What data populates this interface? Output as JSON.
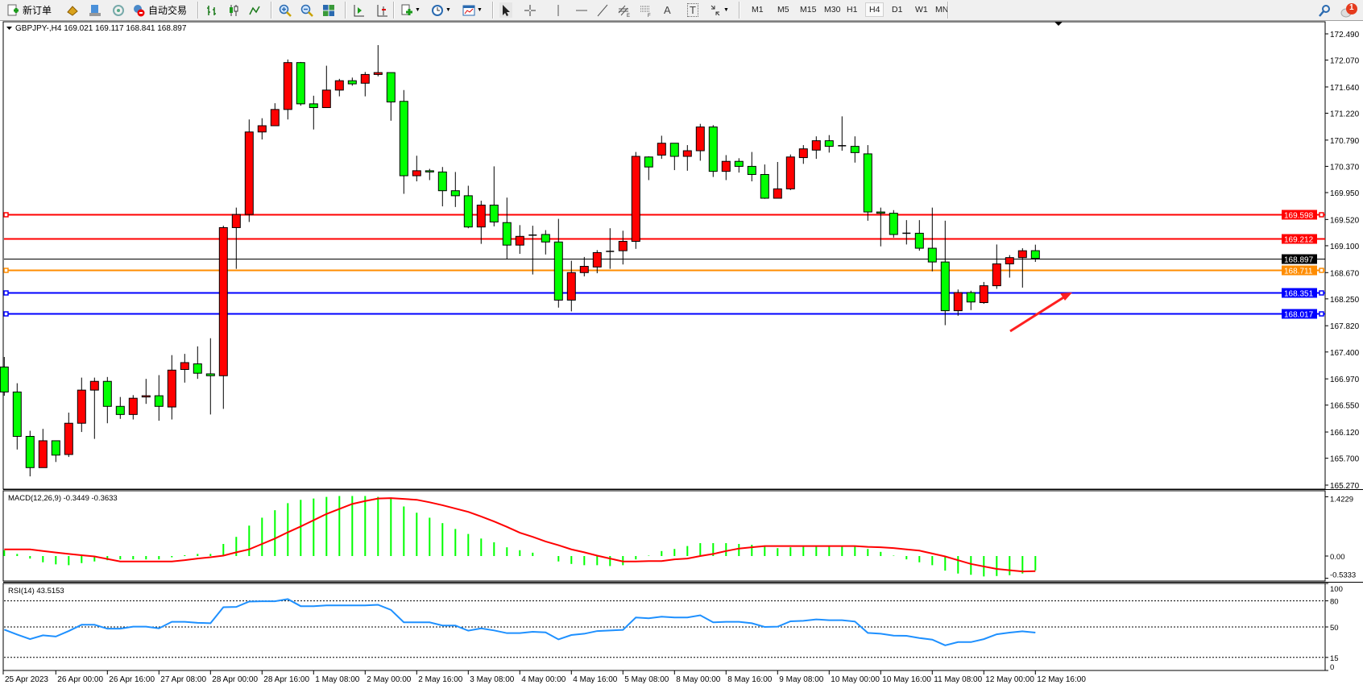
{
  "toolbar": {
    "new_order_label": "新订单",
    "auto_trading_label": "自动交易",
    "timeframes": [
      "M1",
      "M5",
      "M15",
      "M30",
      "H1",
      "H4",
      "D1",
      "W1",
      "MN"
    ],
    "active_timeframe": "H4",
    "notification_count": "1",
    "tool_text_label": "A",
    "tool_label_label": "T"
  },
  "chart": {
    "header": "GBPJPY-,H4  169.021 169.117 168.841 168.897",
    "colors": {
      "bull": "#ff0000",
      "bear": "#00ff00",
      "macd_hist": "#00ff00",
      "macd_signal": "#ff0000",
      "rsi": "#1e90ff"
    }
  },
  "chart_data": {
    "type": "candlestick",
    "symbol": "GBPJPY-",
    "timeframe": "H4",
    "price_axis_ticks": [
      "172.490",
      "172.070",
      "171.640",
      "171.220",
      "170.790",
      "170.370",
      "169.950",
      "169.520",
      "169.100",
      "168.670",
      "168.250",
      "167.820",
      "167.400",
      "166.970",
      "166.550",
      "166.120",
      "165.700",
      "165.270"
    ],
    "price_range": [
      165.27,
      172.49
    ],
    "time_labels": [
      {
        "bar": 0,
        "label": "25 Apr 2023"
      },
      {
        "bar": 4,
        "label": "26 Apr 00:00"
      },
      {
        "bar": 8,
        "label": "26 Apr 16:00"
      },
      {
        "bar": 12,
        "label": "27 Apr 08:00"
      },
      {
        "bar": 16,
        "label": "28 Apr 00:00"
      },
      {
        "bar": 20,
        "label": "28 Apr 16:00"
      },
      {
        "bar": 24,
        "label": "1 May 08:00"
      },
      {
        "bar": 28,
        "label": "2 May 00:00"
      },
      {
        "bar": 32,
        "label": "2 May 16:00"
      },
      {
        "bar": 36,
        "label": "3 May 08:00"
      },
      {
        "bar": 40,
        "label": "4 May 00:00"
      },
      {
        "bar": 44,
        "label": "4 May 16:00"
      },
      {
        "bar": 48,
        "label": "5 May 08:00"
      },
      {
        "bar": 52,
        "label": "8 May 00:00"
      },
      {
        "bar": 56,
        "label": "8 May 16:00"
      },
      {
        "bar": 60,
        "label": "9 May 08:00"
      },
      {
        "bar": 64,
        "label": "10 May 00:00"
      },
      {
        "bar": 68,
        "label": "10 May 16:00"
      },
      {
        "bar": 72,
        "label": "11 May 08:00"
      },
      {
        "bar": 76,
        "label": "12 May 00:00"
      },
      {
        "bar": 80,
        "label": "12 May 16:00"
      }
    ],
    "ohlc": [
      [
        167.16,
        167.32,
        166.7,
        166.76
      ],
      [
        166.76,
        166.9,
        165.84,
        166.05
      ],
      [
        166.05,
        166.14,
        165.41,
        165.55
      ],
      [
        165.55,
        166.17,
        165.55,
        165.98
      ],
      [
        165.98,
        165.98,
        165.64,
        165.75
      ],
      [
        165.76,
        166.43,
        165.72,
        166.26
      ],
      [
        166.26,
        166.99,
        166.12,
        166.79
      ],
      [
        166.79,
        166.99,
        166.01,
        166.93
      ],
      [
        166.93,
        167.0,
        166.26,
        166.53
      ],
      [
        166.53,
        166.68,
        166.33,
        166.4
      ],
      [
        166.4,
        166.71,
        166.32,
        166.66
      ],
      [
        166.68,
        166.97,
        166.57,
        166.7
      ],
      [
        166.7,
        167.03,
        166.3,
        166.53
      ],
      [
        166.52,
        167.35,
        166.32,
        167.11
      ],
      [
        167.12,
        167.37,
        166.91,
        167.23
      ],
      [
        167.21,
        167.49,
        166.97,
        167.06
      ],
      [
        167.05,
        167.62,
        166.4,
        167.02
      ],
      [
        167.02,
        169.42,
        166.49,
        169.39
      ],
      [
        169.39,
        169.71,
        168.73,
        169.6
      ],
      [
        169.6,
        171.12,
        169.48,
        170.92
      ],
      [
        170.92,
        171.14,
        170.8,
        171.02
      ],
      [
        171.02,
        171.38,
        171.02,
        171.28
      ],
      [
        171.28,
        172.08,
        171.12,
        172.03
      ],
      [
        172.03,
        172.04,
        171.34,
        171.37
      ],
      [
        171.37,
        171.5,
        170.96,
        171.31
      ],
      [
        171.31,
        171.98,
        171.31,
        171.59
      ],
      [
        171.59,
        171.77,
        171.49,
        171.74
      ],
      [
        171.74,
        171.79,
        171.66,
        171.69
      ],
      [
        171.7,
        171.88,
        171.49,
        171.84
      ],
      [
        171.84,
        172.31,
        171.81,
        171.87
      ],
      [
        171.87,
        171.87,
        171.1,
        171.4
      ],
      [
        171.41,
        171.59,
        169.93,
        170.22
      ],
      [
        170.22,
        170.54,
        170.13,
        170.3
      ],
      [
        170.3,
        170.33,
        170.15,
        170.28
      ],
      [
        170.28,
        170.36,
        169.73,
        169.98
      ],
      [
        169.98,
        170.28,
        169.72,
        169.9
      ],
      [
        169.9,
        170.06,
        169.38,
        169.4
      ],
      [
        169.4,
        169.82,
        169.13,
        169.75
      ],
      [
        169.75,
        170.37,
        169.41,
        169.48
      ],
      [
        169.47,
        169.87,
        168.89,
        169.11
      ],
      [
        169.11,
        169.43,
        168.97,
        169.25
      ],
      [
        169.27,
        169.42,
        168.64,
        169.27
      ],
      [
        169.28,
        169.35,
        168.96,
        169.16
      ],
      [
        169.16,
        169.53,
        168.11,
        168.23
      ],
      [
        168.23,
        168.86,
        168.05,
        168.67
      ],
      [
        168.67,
        168.92,
        168.61,
        168.77
      ],
      [
        168.76,
        169.03,
        168.66,
        168.99
      ],
      [
        169.0,
        169.38,
        168.73,
        169.01
      ],
      [
        169.02,
        169.34,
        168.8,
        169.17
      ],
      [
        169.17,
        170.6,
        169.05,
        170.53
      ],
      [
        170.52,
        170.53,
        170.15,
        170.36
      ],
      [
        170.55,
        170.86,
        170.49,
        170.74
      ],
      [
        170.74,
        170.74,
        170.31,
        170.53
      ],
      [
        170.53,
        170.71,
        170.3,
        170.62
      ],
      [
        170.62,
        171.05,
        170.46,
        171.0
      ],
      [
        171.0,
        171.03,
        170.2,
        170.29
      ],
      [
        170.29,
        170.55,
        170.15,
        170.45
      ],
      [
        170.45,
        170.5,
        170.27,
        170.37
      ],
      [
        170.37,
        170.6,
        170.13,
        170.24
      ],
      [
        170.24,
        170.4,
        169.85,
        169.86
      ],
      [
        169.86,
        170.44,
        169.86,
        170.01
      ],
      [
        170.01,
        170.56,
        169.99,
        170.52
      ],
      [
        170.51,
        170.71,
        170.41,
        170.65
      ],
      [
        170.63,
        170.85,
        170.49,
        170.78
      ],
      [
        170.78,
        170.87,
        170.59,
        170.69
      ],
      [
        170.7,
        171.17,
        170.62,
        170.69
      ],
      [
        170.69,
        170.85,
        170.43,
        170.59
      ],
      [
        170.57,
        170.71,
        169.5,
        169.64
      ],
      [
        169.64,
        169.71,
        169.09,
        169.62
      ],
      [
        169.62,
        169.67,
        169.23,
        169.28
      ],
      [
        169.3,
        169.51,
        169.12,
        169.29
      ],
      [
        169.3,
        169.51,
        169.02,
        169.06
      ],
      [
        169.06,
        169.71,
        168.69,
        168.84
      ],
      [
        168.84,
        169.5,
        167.83,
        168.06
      ],
      [
        168.06,
        168.4,
        167.98,
        168.35
      ],
      [
        168.35,
        168.38,
        168.07,
        168.2
      ],
      [
        168.19,
        168.52,
        168.17,
        168.46
      ],
      [
        168.46,
        169.12,
        168.41,
        168.81
      ],
      [
        168.81,
        168.95,
        168.59,
        168.91
      ],
      [
        168.91,
        169.06,
        168.43,
        169.02
      ],
      [
        169.021,
        169.117,
        168.841,
        168.897
      ]
    ],
    "horizontal_lines": [
      {
        "price": 169.598,
        "label": "169.598",
        "color": "#ff0000",
        "markers": true
      },
      {
        "price": 169.212,
        "label": "169.212",
        "color": "#ff0000",
        "markers": false
      },
      {
        "price": 168.897,
        "label": "168.897",
        "color": "#000000",
        "markers": false
      },
      {
        "price": 168.711,
        "label": "168.711",
        "color": "#ff8c00",
        "markers": true
      },
      {
        "price": 168.351,
        "label": "168.351",
        "color": "#0000ff",
        "markers": true
      },
      {
        "price": 168.017,
        "label": "168.017",
        "color": "#0000ff",
        "markers": true
      }
    ],
    "annotation": {
      "type": "arrow",
      "color": "#ff2020",
      "direction": "up-right"
    },
    "macd": {
      "label": "MACD(12,26,9) -0.3449 -0.3633",
      "axis_labels": [
        "1.4229",
        "0.00",
        "-0.5333"
      ],
      "range": [
        -0.5333,
        1.4229
      ],
      "histogram": [
        0.14,
        0.05,
        -0.06,
        -0.15,
        -0.2,
        -0.22,
        -0.17,
        -0.13,
        -0.1,
        -0.08,
        -0.08,
        -0.08,
        -0.08,
        -0.03,
        0.02,
        0.05,
        0.05,
        0.29,
        0.46,
        0.73,
        0.92,
        1.1,
        1.27,
        1.35,
        1.38,
        1.42,
        1.44,
        1.44,
        1.44,
        1.42,
        1.38,
        1.19,
        1.04,
        0.92,
        0.79,
        0.65,
        0.53,
        0.42,
        0.33,
        0.21,
        0.14,
        0.08,
        0.0,
        -0.13,
        -0.19,
        -0.22,
        -0.22,
        -0.24,
        -0.22,
        -0.08,
        0.01,
        0.12,
        0.17,
        0.24,
        0.31,
        0.31,
        0.31,
        0.29,
        0.27,
        0.23,
        0.19,
        0.21,
        0.24,
        0.24,
        0.24,
        0.24,
        0.24,
        0.17,
        0.1,
        0.01,
        -0.08,
        -0.15,
        -0.22,
        -0.35,
        -0.42,
        -0.45,
        -0.49,
        -0.48,
        -0.46,
        -0.42,
        -0.3449
      ],
      "signal": [
        0.16,
        0.16,
        0.16,
        0.12,
        0.085,
        0.05,
        0.02,
        -0.01,
        -0.07,
        -0.13,
        -0.13,
        -0.13,
        -0.13,
        -0.13,
        -0.1,
        -0.06,
        -0.03,
        0.01,
        0.09,
        0.16,
        0.29,
        0.42,
        0.57,
        0.71,
        0.86,
        1.01,
        1.13,
        1.25,
        1.32,
        1.38,
        1.39,
        1.37,
        1.35,
        1.29,
        1.22,
        1.14,
        1.06,
        0.95,
        0.83,
        0.7,
        0.56,
        0.46,
        0.35,
        0.26,
        0.16,
        0.09,
        0.01,
        -0.06,
        -0.13,
        -0.13,
        -0.12,
        -0.12,
        -0.08,
        -0.06,
        0.0,
        0.05,
        0.12,
        0.18,
        0.21,
        0.24,
        0.24,
        0.24,
        0.24,
        0.24,
        0.24,
        0.24,
        0.24,
        0.22,
        0.21,
        0.19,
        0.16,
        0.13,
        0.06,
        -0.01,
        -0.1,
        -0.19,
        -0.25,
        -0.31,
        -0.34,
        -0.37,
        -0.3633
      ]
    },
    "rsi": {
      "label": "RSI(14) 43.5153",
      "axis_labels": [
        "100",
        "80",
        "50",
        "15",
        "0"
      ],
      "levels": [
        80,
        50,
        15
      ],
      "range": [
        0,
        100
      ],
      "values": [
        46.9,
        41.3,
        36,
        40.4,
        39,
        45.3,
        52.5,
        52.5,
        48,
        48,
        50.3,
        50.3,
        48.4,
        55.9,
        55.9,
        54.7,
        54.3,
        72.7,
        73,
        79.2,
        79.5,
        79.5,
        82,
        73.9,
        73.9,
        74.8,
        74.8,
        74.8,
        74.8,
        75.5,
        69.6,
        55.3,
        55.3,
        55.3,
        51.6,
        51.6,
        45.7,
        48.4,
        46,
        42.9,
        42.9,
        44.4,
        43.8,
        35.7,
        40.7,
        42.2,
        45.3,
        46,
        46.6,
        60.9,
        60,
        61.8,
        60.9,
        60.9,
        63.4,
        55.3,
        55.9,
        55.9,
        54.3,
        50,
        50.3,
        56.5,
        57.1,
        58.7,
        57.8,
        57.8,
        56.2,
        43.2,
        42.2,
        40.1,
        39.8,
        37.3,
        35.4,
        28.9,
        32.6,
        32.6,
        36,
        41.6,
        43.5,
        45,
        43.5153
      ]
    }
  }
}
